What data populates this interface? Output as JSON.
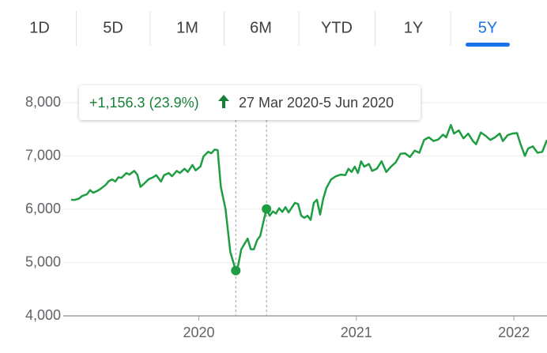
{
  "tabs": [
    "1D",
    "5D",
    "1M",
    "6M",
    "YTD",
    "1Y",
    "5Y"
  ],
  "selected_tab": 6,
  "chart_data": {
    "type": "line",
    "change_label": "+1,156.3 (23.9%)",
    "range_label": "27 Mar 2020-5 Jun 2020",
    "color": "#1f9d43",
    "grid": true,
    "ylim": [
      4000,
      8000
    ],
    "yticks": [
      {
        "value": 4000,
        "label": "4,000"
      },
      {
        "value": 5000,
        "label": "5,000"
      },
      {
        "value": 6000,
        "label": "6,000"
      },
      {
        "value": 7000,
        "label": "7,000"
      },
      {
        "value": 8000,
        "label": "8,000"
      }
    ],
    "xlim": [
      2019.19,
      2022.21
    ],
    "xticks": [
      2020,
      2021,
      2022
    ],
    "selection": {
      "x": [
        2020.235,
        2020.43
      ],
      "values": [
        4850,
        6006.3
      ]
    },
    "x": [
      2019.19,
      2019.21,
      2019.24,
      2019.26,
      2019.29,
      2019.31,
      2019.33,
      2019.36,
      2019.38,
      2019.41,
      2019.43,
      2019.45,
      2019.47,
      2019.49,
      2019.51,
      2019.54,
      2019.56,
      2019.59,
      2019.61,
      2019.63,
      2019.66,
      2019.68,
      2019.71,
      2019.73,
      2019.76,
      2019.78,
      2019.81,
      2019.83,
      2019.86,
      2019.88,
      2019.91,
      2019.93,
      2019.96,
      2019.98,
      2020.01,
      2020.03,
      2020.06,
      2020.08,
      2020.1,
      2020.12,
      2020.14,
      2020.17,
      2020.2,
      2020.235,
      2020.25,
      2020.27,
      2020.29,
      2020.31,
      2020.33,
      2020.35,
      2020.37,
      2020.39,
      2020.41,
      2020.43,
      2020.45,
      2020.47,
      2020.49,
      2020.51,
      2020.53,
      2020.55,
      2020.57,
      2020.59,
      2020.61,
      2020.63,
      2020.65,
      2020.67,
      2020.69,
      2020.71,
      2020.73,
      2020.75,
      2020.77,
      2020.79,
      2020.81,
      2020.84,
      2020.87,
      2020.9,
      2020.93,
      2020.95,
      2020.97,
      2020.99,
      2021.01,
      2021.03,
      2021.05,
      2021.08,
      2021.1,
      2021.13,
      2021.16,
      2021.19,
      2021.22,
      2021.25,
      2021.28,
      2021.31,
      2021.34,
      2021.37,
      2021.4,
      2021.43,
      2021.46,
      2021.49,
      2021.52,
      2021.55,
      2021.57,
      2021.6,
      2021.62,
      2021.65,
      2021.68,
      2021.71,
      2021.74,
      2021.76,
      2021.79,
      2021.82,
      2021.85,
      2021.88,
      2021.91,
      2021.93,
      2021.96,
      2021.99,
      2022.02,
      2022.04,
      2022.07,
      2022.09,
      2022.12,
      2022.15,
      2022.18,
      2022.21
    ],
    "values": [
      6180,
      6175,
      6200,
      6250,
      6280,
      6360,
      6310,
      6350,
      6390,
      6460,
      6530,
      6560,
      6520,
      6600,
      6590,
      6680,
      6650,
      6720,
      6650,
      6420,
      6500,
      6560,
      6600,
      6640,
      6520,
      6640,
      6680,
      6620,
      6720,
      6680,
      6760,
      6700,
      6830,
      6730,
      6800,
      6990,
      7080,
      7050,
      7120,
      7110,
      6420,
      6000,
      5200,
      4850,
      4950,
      5250,
      5350,
      5450,
      5250,
      5250,
      5420,
      5500,
      5760,
      6006.3,
      5880,
      5960,
      5920,
      6020,
      5950,
      6040,
      5940,
      6030,
      6120,
      6100,
      5880,
      5840,
      5880,
      5800,
      6120,
      6180,
      5900,
      6200,
      6400,
      6560,
      6620,
      6650,
      6640,
      6760,
      6700,
      6800,
      6680,
      6900,
      6800,
      6850,
      6720,
      6760,
      6900,
      6700,
      6800,
      6880,
      7040,
      7050,
      6980,
      7100,
      7060,
      7300,
      7350,
      7280,
      7310,
      7400,
      7350,
      7580,
      7420,
      7480,
      7330,
      7420,
      7280,
      7220,
      7440,
      7380,
      7300,
      7350,
      7420,
      7280,
      7390,
      7420,
      7430,
      7240,
      7000,
      7140,
      7180,
      7060,
      7080,
      7300
    ]
  }
}
